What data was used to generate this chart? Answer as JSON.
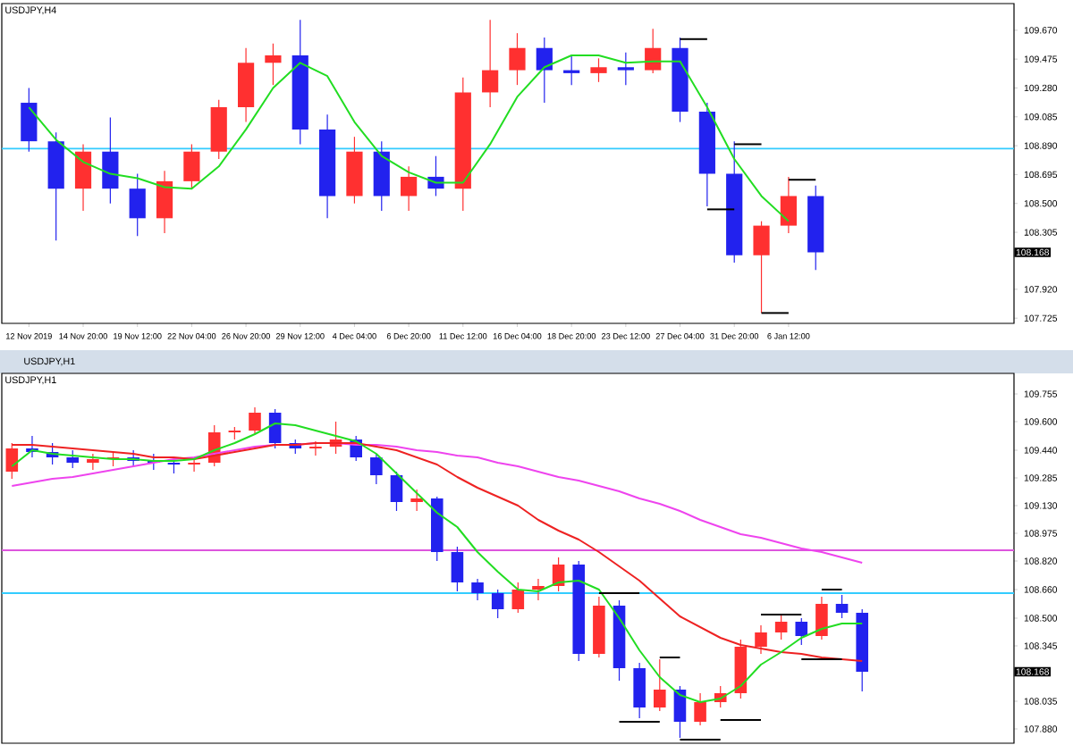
{
  "chart_data": [
    {
      "type": "candlestick",
      "title": "USDJPY,H4",
      "categories": [
        "12 Nov 2019",
        null,
        "14 Nov 20:00",
        null,
        "19 Nov 12:00",
        null,
        "22 Nov 04:00",
        null,
        "26 Nov 20:00",
        null,
        "29 Nov 12:00",
        null,
        "4 Dec 04:00",
        null,
        "6 Dec 20:00",
        null,
        "11 Dec 12:00",
        null,
        "16 Dec 04:00",
        null,
        "18 Dec 20:00",
        null,
        "23 Dec 12:00",
        null,
        "27 Dec 04:00",
        null,
        "31 Dec 20:00",
        null,
        "6 Jan 12:00",
        null
      ],
      "ohlc": [
        [
          109.18,
          109.28,
          108.85,
          108.92
        ],
        [
          108.92,
          108.98,
          108.25,
          108.6
        ],
        [
          108.6,
          108.9,
          108.45,
          108.85
        ],
        [
          108.85,
          109.08,
          108.5,
          108.6
        ],
        [
          108.6,
          108.7,
          108.28,
          108.4
        ],
        [
          108.4,
          108.72,
          108.3,
          108.65
        ],
        [
          108.65,
          108.9,
          108.6,
          108.85
        ],
        [
          108.85,
          109.2,
          108.8,
          109.15
        ],
        [
          109.15,
          109.55,
          109.05,
          109.45
        ],
        [
          109.45,
          109.58,
          109.3,
          109.5
        ],
        [
          109.5,
          109.74,
          108.9,
          109.0
        ],
        [
          109.0,
          109.1,
          108.4,
          108.55
        ],
        [
          108.55,
          108.95,
          108.5,
          108.85
        ],
        [
          108.85,
          108.92,
          108.45,
          108.55
        ],
        [
          108.55,
          108.75,
          108.45,
          108.68
        ],
        [
          108.68,
          108.82,
          108.55,
          108.6
        ],
        [
          108.6,
          109.35,
          108.45,
          109.25
        ],
        [
          109.25,
          109.74,
          109.15,
          109.4
        ],
        [
          109.4,
          109.65,
          109.3,
          109.55
        ],
        [
          109.55,
          109.62,
          109.18,
          109.4
        ],
        [
          109.4,
          109.5,
          109.3,
          109.38
        ],
        [
          109.38,
          109.48,
          109.32,
          109.42
        ],
        [
          109.42,
          109.52,
          109.3,
          109.4
        ],
        [
          109.4,
          109.68,
          109.38,
          109.55
        ],
        [
          109.55,
          109.62,
          109.05,
          109.12
        ],
        [
          109.12,
          109.18,
          108.48,
          108.7
        ],
        [
          108.7,
          108.92,
          108.1,
          108.15
        ],
        [
          108.15,
          108.38,
          107.76,
          108.35
        ],
        [
          108.35,
          108.68,
          108.3,
          108.55
        ],
        [
          108.55,
          108.62,
          108.05,
          108.17
        ]
      ],
      "colors": [
        "#2222ee",
        "#2222ee",
        "#ff3030",
        "#2222ee",
        "#2222ee",
        "#ff3030",
        "#ff3030",
        "#ff3030",
        "#ff3030",
        "#ff3030",
        "#2222ee",
        "#2222ee",
        "#ff3030",
        "#2222ee",
        "#ff3030",
        "#2222ee",
        "#ff3030",
        "#ff3030",
        "#ff3030",
        "#2222ee",
        "#2222ee",
        "#ff3030",
        "#2222ee",
        "#ff3030",
        "#2222ee",
        "#2222ee",
        "#2222ee",
        "#ff3030",
        "#ff3030",
        "#2222ee"
      ],
      "series": [
        {
          "type": "line",
          "color": "#22dd22",
          "values": [
            109.15,
            108.93,
            108.78,
            108.7,
            108.67,
            108.61,
            108.6,
            108.75,
            109.0,
            109.28,
            109.45,
            109.36,
            109.05,
            108.82,
            108.71,
            108.64,
            108.64,
            108.9,
            109.22,
            109.42,
            109.5,
            109.5,
            109.45,
            109.46,
            109.46,
            109.15,
            108.8,
            108.55,
            108.38,
            null
          ]
        },
        {
          "type": "line",
          "color": "#000000",
          "values": [
            null,
            null,
            null,
            null,
            null,
            null,
            null,
            null,
            null,
            null,
            null,
            null,
            null,
            null,
            null,
            null,
            null,
            null,
            null,
            null,
            null,
            null,
            null,
            null,
            109.61,
            109.61,
            null,
            null,
            null,
            null
          ]
        },
        {
          "type": "line",
          "color": "#000000",
          "values": [
            null,
            null,
            null,
            null,
            null,
            null,
            null,
            null,
            null,
            null,
            null,
            null,
            null,
            null,
            null,
            null,
            null,
            null,
            null,
            null,
            null,
            null,
            null,
            null,
            null,
            null,
            108.9,
            108.9,
            null,
            null
          ]
        },
        {
          "type": "line",
          "color": "#000000",
          "values": [
            null,
            null,
            null,
            null,
            null,
            null,
            null,
            null,
            null,
            null,
            null,
            null,
            null,
            null,
            null,
            null,
            null,
            null,
            null,
            null,
            null,
            null,
            null,
            null,
            null,
            108.46,
            108.46,
            null,
            null,
            null
          ]
        },
        {
          "type": "line",
          "color": "#000000",
          "values": [
            null,
            null,
            null,
            null,
            null,
            null,
            null,
            null,
            null,
            null,
            null,
            null,
            null,
            null,
            null,
            null,
            null,
            null,
            null,
            null,
            null,
            null,
            null,
            null,
            null,
            null,
            null,
            null,
            108.66,
            108.66
          ]
        },
        {
          "type": "line",
          "color": "#000000",
          "values": [
            null,
            null,
            null,
            null,
            null,
            null,
            null,
            null,
            null,
            null,
            null,
            null,
            null,
            null,
            null,
            null,
            null,
            null,
            null,
            null,
            null,
            null,
            null,
            null,
            null,
            null,
            null,
            107.76,
            107.76,
            null
          ]
        }
      ],
      "ref_lines": [
        {
          "axis": "y",
          "value": 108.87,
          "color": "#33ccff"
        }
      ],
      "annotations": [
        "108.168"
      ],
      "ylim": [
        107.69,
        109.85
      ],
      "yticks": [
        {
          "value": 109.67,
          "label": "109.670"
        },
        109.475,
        {
          "value": 109.28,
          "label": "109.280"
        },
        109.085,
        {
          "value": 108.89,
          "label": "108.890"
        },
        108.695,
        {
          "value": 108.5,
          "label": "108.500"
        },
        108.305,
        {
          "value": 107.92,
          "label": "107.920"
        },
        107.725
      ]
    },
    {
      "type": "candlestick",
      "title": "USDJPY,H1",
      "subtitle": "USDJPY,H1",
      "categories": [
        null,
        null,
        null,
        null,
        null,
        null,
        null,
        null,
        null,
        null,
        null,
        null,
        null,
        null,
        null,
        null,
        null,
        null,
        null,
        null,
        null,
        null,
        null,
        null,
        null,
        null,
        null,
        null,
        null,
        null,
        null,
        null,
        null,
        null,
        null,
        null,
        null,
        null,
        null,
        null,
        null,
        null,
        null
      ],
      "ohlc": [
        [
          109.32,
          109.48,
          109.28,
          109.45
        ],
        [
          109.45,
          109.52,
          109.4,
          109.43
        ],
        [
          109.43,
          109.48,
          109.36,
          109.4
        ],
        [
          109.4,
          109.44,
          109.34,
          109.37
        ],
        [
          109.37,
          109.42,
          109.33,
          109.39
        ],
        [
          109.39,
          109.43,
          109.35,
          109.4
        ],
        [
          109.4,
          109.44,
          109.35,
          109.38
        ],
        [
          109.38,
          109.42,
          109.33,
          109.37
        ],
        [
          109.37,
          109.4,
          109.31,
          109.36
        ],
        [
          109.36,
          109.39,
          109.32,
          109.37
        ],
        [
          109.37,
          109.58,
          109.35,
          109.54
        ],
        [
          109.54,
          109.57,
          109.5,
          109.55
        ],
        [
          109.55,
          109.68,
          109.53,
          109.65
        ],
        [
          109.65,
          109.67,
          109.45,
          109.48
        ],
        [
          109.48,
          109.5,
          109.42,
          109.45
        ],
        [
          109.45,
          109.49,
          109.41,
          109.46
        ],
        [
          109.46,
          109.6,
          109.42,
          109.5
        ],
        [
          109.5,
          109.52,
          109.38,
          109.4
        ],
        [
          109.4,
          109.42,
          109.25,
          109.3
        ],
        [
          109.3,
          109.32,
          109.1,
          109.15
        ],
        [
          109.15,
          109.22,
          109.1,
          109.17
        ],
        [
          109.17,
          109.18,
          108.82,
          108.87
        ],
        [
          108.87,
          108.9,
          108.65,
          108.7
        ],
        [
          108.7,
          108.72,
          108.6,
          108.64
        ],
        [
          108.64,
          108.66,
          108.5,
          108.55
        ],
        [
          108.55,
          108.7,
          108.53,
          108.66
        ],
        [
          108.66,
          108.72,
          108.6,
          108.68
        ],
        [
          108.68,
          108.84,
          108.65,
          108.8
        ],
        [
          108.8,
          108.82,
          108.26,
          108.3
        ],
        [
          108.3,
          108.62,
          108.28,
          108.57
        ],
        [
          108.57,
          108.6,
          108.15,
          108.22
        ],
        [
          108.22,
          108.25,
          107.94,
          108.0
        ],
        [
          108.0,
          108.27,
          107.98,
          108.1
        ],
        [
          108.1,
          108.12,
          107.83,
          107.92
        ],
        [
          107.92,
          108.08,
          107.9,
          108.03
        ],
        [
          108.03,
          108.12,
          108.0,
          108.08
        ],
        [
          108.08,
          108.38,
          108.05,
          108.34
        ],
        [
          108.34,
          108.46,
          108.3,
          108.42
        ],
        [
          108.42,
          108.52,
          108.38,
          108.48
        ],
        [
          108.48,
          108.5,
          108.35,
          108.4
        ],
        [
          108.4,
          108.62,
          108.38,
          108.58
        ],
        [
          108.58,
          108.63,
          108.5,
          108.53
        ],
        [
          108.53,
          108.55,
          108.09,
          108.2
        ]
      ],
      "colors": [
        "#ff3030",
        "#2222ee",
        "#2222ee",
        "#2222ee",
        "#ff3030",
        "#ff3030",
        "#2222ee",
        "#2222ee",
        "#2222ee",
        "#ff3030",
        "#ff3030",
        "#ff3030",
        "#ff3030",
        "#2222ee",
        "#2222ee",
        "#ff3030",
        "#ff3030",
        "#2222ee",
        "#2222ee",
        "#2222ee",
        "#ff3030",
        "#2222ee",
        "#2222ee",
        "#2222ee",
        "#2222ee",
        "#ff3030",
        "#ff3030",
        "#ff3030",
        "#2222ee",
        "#ff3030",
        "#2222ee",
        "#2222ee",
        "#ff3030",
        "#2222ee",
        "#ff3030",
        "#ff3030",
        "#ff3030",
        "#ff3030",
        "#ff3030",
        "#2222ee",
        "#ff3030",
        "#2222ee",
        "#2222ee"
      ],
      "series": [
        {
          "type": "line",
          "color": "#ee44ee",
          "values": [
            109.24,
            109.26,
            109.28,
            109.29,
            109.31,
            109.33,
            109.35,
            109.37,
            109.39,
            109.4,
            109.42,
            109.44,
            109.46,
            109.47,
            109.47,
            109.48,
            109.48,
            109.47,
            109.47,
            109.46,
            109.44,
            109.43,
            109.41,
            109.4,
            109.37,
            109.35,
            109.32,
            109.29,
            109.27,
            109.24,
            109.21,
            109.17,
            109.14,
            109.1,
            109.05,
            109.01,
            108.97,
            108.95,
            108.92,
            108.89,
            108.87,
            108.84,
            108.81
          ]
        },
        {
          "type": "line",
          "color": "#ee2222",
          "values": [
            109.47,
            109.47,
            109.46,
            109.45,
            109.44,
            109.43,
            109.42,
            109.4,
            109.4,
            109.39,
            109.41,
            109.43,
            109.45,
            109.47,
            109.47,
            109.48,
            109.48,
            109.48,
            109.46,
            109.44,
            109.4,
            109.36,
            109.29,
            109.23,
            109.18,
            109.13,
            109.05,
            108.99,
            108.94,
            108.87,
            108.79,
            108.71,
            108.61,
            108.51,
            108.45,
            108.39,
            108.35,
            108.33,
            108.31,
            108.3,
            108.28,
            108.27,
            108.26
          ]
        },
        {
          "type": "line",
          "color": "#22dd22",
          "values": [
            109.35,
            109.44,
            109.42,
            109.41,
            109.4,
            109.39,
            109.39,
            109.38,
            109.38,
            109.39,
            109.44,
            109.48,
            109.53,
            109.59,
            109.58,
            109.55,
            109.52,
            109.49,
            109.42,
            109.31,
            109.2,
            109.09,
            109.01,
            108.87,
            108.76,
            108.66,
            108.65,
            108.7,
            108.71,
            108.66,
            108.5,
            108.32,
            108.17,
            108.07,
            108.03,
            108.05,
            108.12,
            108.24,
            108.31,
            108.39,
            108.44,
            108.47,
            108.47
          ]
        },
        {
          "type": "line",
          "color": "#000000",
          "values": [
            null,
            null,
            null,
            null,
            null,
            null,
            null,
            null,
            null,
            null,
            null,
            null,
            null,
            null,
            null,
            null,
            null,
            null,
            null,
            null,
            null,
            null,
            null,
            null,
            null,
            null,
            null,
            null,
            null,
            108.64,
            108.64,
            108.64,
            null,
            null,
            null,
            null,
            null,
            null,
            null,
            null,
            null,
            null,
            null
          ]
        },
        {
          "type": "line",
          "color": "#000000",
          "values": [
            null,
            null,
            null,
            null,
            null,
            null,
            null,
            null,
            null,
            null,
            null,
            null,
            null,
            null,
            null,
            null,
            null,
            null,
            null,
            null,
            null,
            null,
            null,
            null,
            null,
            null,
            null,
            null,
            null,
            null,
            null,
            null,
            108.28,
            108.28,
            null,
            null,
            null,
            null,
            null,
            null,
            null,
            null,
            null
          ]
        },
        {
          "type": "line",
          "color": "#000000",
          "values": [
            null,
            null,
            null,
            null,
            null,
            null,
            null,
            null,
            null,
            null,
            null,
            null,
            null,
            null,
            null,
            null,
            null,
            null,
            null,
            null,
            null,
            null,
            null,
            null,
            null,
            null,
            null,
            null,
            null,
            null,
            107.92,
            107.92,
            107.92,
            null,
            null,
            null,
            null,
            null,
            null,
            null,
            null,
            null,
            null
          ]
        },
        {
          "type": "line",
          "color": "#000000",
          "values": [
            null,
            null,
            null,
            null,
            null,
            null,
            null,
            null,
            null,
            null,
            null,
            null,
            null,
            null,
            null,
            null,
            null,
            null,
            null,
            null,
            null,
            null,
            null,
            null,
            null,
            null,
            null,
            null,
            null,
            null,
            null,
            null,
            null,
            107.82,
            107.82,
            107.82,
            null,
            null,
            null,
            null,
            null,
            null,
            null
          ]
        },
        {
          "type": "line",
          "color": "#000000",
          "values": [
            null,
            null,
            null,
            null,
            null,
            null,
            null,
            null,
            null,
            null,
            null,
            null,
            null,
            null,
            null,
            null,
            null,
            null,
            null,
            null,
            null,
            null,
            null,
            null,
            null,
            null,
            null,
            null,
            null,
            null,
            null,
            null,
            null,
            null,
            null,
            107.93,
            107.93,
            107.93,
            null,
            null,
            null,
            null,
            null
          ]
        },
        {
          "type": "line",
          "color": "#000000",
          "values": [
            null,
            null,
            null,
            null,
            null,
            null,
            null,
            null,
            null,
            null,
            null,
            null,
            null,
            null,
            null,
            null,
            null,
            null,
            null,
            null,
            null,
            null,
            null,
            null,
            null,
            null,
            null,
            null,
            null,
            null,
            null,
            null,
            null,
            null,
            null,
            null,
            null,
            108.52,
            108.52,
            108.52,
            null,
            null,
            null
          ]
        },
        {
          "type": "line",
          "color": "#000000",
          "values": [
            null,
            null,
            null,
            null,
            null,
            null,
            null,
            null,
            null,
            null,
            null,
            null,
            null,
            null,
            null,
            null,
            null,
            null,
            null,
            null,
            null,
            null,
            null,
            null,
            null,
            null,
            null,
            null,
            null,
            null,
            null,
            null,
            null,
            null,
            null,
            null,
            null,
            null,
            null,
            108.27,
            108.27,
            108.27,
            null
          ]
        },
        {
          "type": "line",
          "color": "#000000",
          "values": [
            null,
            null,
            null,
            null,
            null,
            null,
            null,
            null,
            null,
            null,
            null,
            null,
            null,
            null,
            null,
            null,
            null,
            null,
            null,
            null,
            null,
            null,
            null,
            null,
            null,
            null,
            null,
            null,
            null,
            null,
            null,
            null,
            null,
            null,
            null,
            null,
            null,
            null,
            null,
            null,
            108.66,
            108.66,
            null
          ]
        }
      ],
      "ref_lines": [
        {
          "axis": "y",
          "value": 108.88,
          "color": "#dd55dd"
        },
        {
          "axis": "y",
          "value": 108.64,
          "color": "#33ccff"
        }
      ],
      "annotations": [
        "108.168"
      ],
      "ylim": [
        107.8,
        109.87
      ],
      "tick_labels": "y",
      "yticks": [
        109.755,
        {
          "value": 109.6,
          "label": "109.600"
        },
        {
          "value": 109.44,
          "label": "109.440"
        },
        109.285,
        {
          "value": 109.13,
          "label": "109.130"
        },
        108.975,
        {
          "value": 108.82,
          "label": "108.820"
        },
        {
          "value": 108.66,
          "label": "108.660"
        },
        {
          "value": 108.5,
          "label": "108.500"
        },
        108.345,
        108.035,
        {
          "value": 107.88,
          "label": "107.880"
        }
      ]
    }
  ]
}
